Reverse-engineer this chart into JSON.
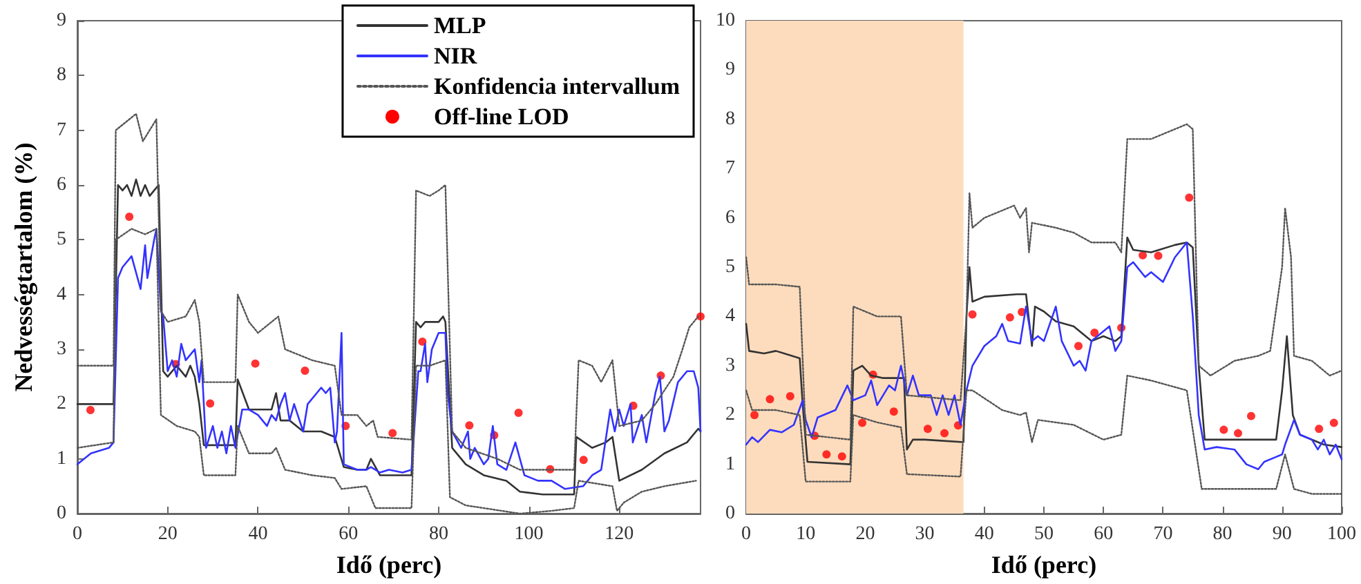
{
  "chart_data": [
    {
      "type": "line",
      "xlabel": "Idő (perc)",
      "ylabel": "Nedvességtartalom (%)",
      "xlim": [
        0,
        138
      ],
      "xticks": [
        0,
        20,
        40,
        60,
        80,
        100,
        120
      ],
      "ylim": [
        0,
        9
      ],
      "yticks": [
        0,
        1,
        2,
        3,
        4,
        5,
        6,
        7,
        8,
        9
      ],
      "grid": false,
      "legend": "top right",
      "series": [
        {
          "name": "MLP",
          "color": "#333333",
          "line_style": "solid",
          "marker": "none",
          "x": [
            0,
            8,
            9,
            10,
            11,
            12,
            13,
            14,
            15,
            16,
            17,
            18,
            19,
            20,
            22,
            24,
            25,
            26,
            27,
            28,
            35,
            35.5,
            38,
            40,
            43,
            44,
            45,
            47,
            50,
            54,
            57,
            59,
            62,
            64,
            65,
            67,
            70,
            74,
            75,
            76,
            77,
            78,
            80,
            81,
            81.5,
            83,
            86,
            90,
            95,
            98,
            103,
            110,
            110.5,
            114,
            117,
            118.5,
            120,
            125,
            130,
            135,
            137.5,
            138
          ],
          "values": [
            2.0,
            2.0,
            6.0,
            5.9,
            6.0,
            5.8,
            6.1,
            5.8,
            6.0,
            5.8,
            5.9,
            6.0,
            2.6,
            2.5,
            2.7,
            2.5,
            2.7,
            2.5,
            2.0,
            1.25,
            1.25,
            2.45,
            1.9,
            1.9,
            1.9,
            2.2,
            1.7,
            1.7,
            1.5,
            1.5,
            1.4,
            0.85,
            0.8,
            0.8,
            1.0,
            0.7,
            0.7,
            0.7,
            3.5,
            3.4,
            3.5,
            3.5,
            3.5,
            3.6,
            3.5,
            1.2,
            0.9,
            0.7,
            0.6,
            0.4,
            0.35,
            0.35,
            1.4,
            1.2,
            1.3,
            1.4,
            0.6,
            0.8,
            1.1,
            1.3,
            1.55,
            1.5
          ]
        },
        {
          "name": "NIR",
          "color": "#3333ff",
          "line_style": "solid",
          "marker": "none",
          "x": [
            0,
            3,
            7,
            8,
            9,
            10,
            12,
            14,
            15,
            15.5,
            17,
            17.5,
            18.5,
            19,
            20,
            21,
            22,
            23,
            24,
            26,
            27,
            27.5,
            28.5,
            30,
            31,
            32,
            33,
            34,
            35,
            36.5,
            38,
            40,
            42,
            43,
            44,
            45,
            46,
            47,
            48,
            50,
            51,
            53,
            54,
            55,
            56,
            57,
            57.5,
            58.5,
            59,
            62,
            64,
            65,
            67,
            69,
            72,
            74,
            75.5,
            76,
            77,
            77.5,
            78.5,
            80,
            81.5,
            82,
            83,
            85,
            86.5,
            87,
            88,
            90,
            91,
            92,
            93,
            95,
            97,
            99,
            102,
            105,
            108,
            112,
            114,
            116,
            118,
            119,
            120,
            121,
            122.5,
            123,
            125,
            126,
            128,
            129,
            130,
            131,
            133,
            135,
            136.5,
            137.5,
            138
          ],
          "values": [
            0.9,
            1.1,
            1.2,
            1.3,
            4.3,
            4.5,
            4.7,
            4.1,
            4.9,
            4.3,
            5.0,
            5.2,
            3.7,
            3.6,
            2.6,
            2.8,
            2.5,
            3.1,
            2.8,
            3.0,
            2.4,
            2.8,
            1.2,
            1.6,
            1.2,
            1.5,
            1.1,
            1.6,
            1.2,
            1.9,
            1.9,
            1.8,
            1.6,
            1.8,
            1.7,
            2.0,
            2.2,
            1.7,
            2.0,
            1.5,
            2.0,
            2.2,
            2.3,
            2.2,
            2.3,
            1.3,
            1.5,
            3.3,
            0.9,
            0.8,
            0.8,
            0.85,
            0.75,
            0.8,
            0.75,
            0.8,
            2.6,
            2.6,
            3.1,
            2.4,
            3.0,
            3.3,
            3.3,
            2.2,
            1.5,
            1.2,
            1.5,
            1.0,
            1.2,
            0.9,
            1.0,
            1.6,
            0.9,
            0.8,
            1.3,
            0.7,
            0.6,
            0.6,
            0.45,
            0.5,
            0.7,
            0.8,
            1.9,
            1.5,
            1.9,
            1.6,
            2.0,
            1.3,
            1.8,
            1.3,
            2.2,
            2.5,
            1.5,
            1.7,
            2.4,
            2.6,
            2.6,
            2.3,
            1.5
          ]
        },
        {
          "name": "Konfidencia intervallum",
          "color": "#555555",
          "line_style": "dotted",
          "marker": "none",
          "x": [
            0,
            8,
            8.5,
            10,
            13,
            14.5,
            17.5,
            18.5,
            20,
            24,
            26,
            27,
            28,
            35,
            35.5,
            38,
            40,
            44.5,
            46,
            49,
            52,
            57,
            58.5,
            62,
            64,
            65.5,
            66.5,
            74,
            75,
            78,
            80,
            81.5,
            83,
            86,
            93,
            98,
            110,
            111,
            114,
            116,
            118.5,
            120,
            125,
            128,
            132,
            134,
            135.5,
            137.5
          ],
          "values": [
            2.7,
            2.7,
            7.0,
            7.1,
            7.3,
            6.8,
            7.2,
            3.7,
            3.5,
            3.6,
            3.9,
            3.5,
            2.4,
            2.4,
            4.0,
            3.5,
            3.3,
            3.6,
            3.0,
            2.9,
            2.8,
            2.7,
            1.8,
            1.8,
            1.6,
            1.7,
            1.4,
            1.35,
            5.9,
            5.8,
            5.9,
            6.0,
            1.5,
            1.2,
            1.0,
            0.8,
            0.8,
            2.8,
            2.7,
            2.4,
            2.8,
            1.6,
            1.7,
            2.0,
            2.5,
            3.0,
            3.4,
            3.6
          ]
        },
        {
          "color": "#555555",
          "line_style": "dotted",
          "marker": "none",
          "x": [
            0,
            8,
            8.5,
            12,
            15,
            17.5,
            18.5,
            22,
            26,
            27,
            28,
            35,
            35.5,
            38,
            43,
            44,
            46,
            52,
            57,
            58.5,
            64,
            65,
            66,
            74,
            75,
            78,
            81.5,
            82.5,
            86,
            98,
            105,
            110,
            111,
            118.5,
            119.5,
            121,
            125,
            130,
            137
          ],
          "values": [
            1.2,
            1.3,
            5.0,
            5.2,
            5.1,
            5.2,
            1.8,
            1.6,
            1.5,
            1.4,
            0.7,
            0.7,
            1.6,
            1.1,
            1.1,
            1.2,
            0.8,
            0.7,
            0.65,
            0.45,
            0.5,
            0.3,
            0.1,
            0.1,
            2.7,
            2.7,
            2.8,
            0.3,
            0.15,
            0.0,
            0.05,
            0.1,
            0.6,
            0.5,
            0.05,
            0.2,
            0.4,
            0.5,
            0.6
          ]
        },
        {
          "name": "Off-line LOD",
          "type": "scatter",
          "color": "#ff0000",
          "marker": "circle",
          "x": [
            2.9,
            11.5,
            21.8,
            29.4,
            39.4,
            50.4,
            59.4,
            69.8,
            76.4,
            86.8,
            92.3,
            97.7,
            104.7,
            112.1,
            123.1,
            129.2,
            138
          ],
          "values": [
            1.89,
            5.42,
            2.73,
            2.01,
            2.74,
            2.61,
            1.6,
            1.47,
            3.14,
            1.61,
            1.43,
            1.84,
            0.81,
            0.98,
            1.97,
            2.52,
            3.6
          ]
        }
      ]
    },
    {
      "type": "line",
      "xlabel": "Idő (perc)",
      "xlim": [
        0,
        100
      ],
      "xticks": [
        0,
        10,
        20,
        30,
        40,
        50,
        60,
        70,
        80,
        90,
        100
      ],
      "ylim": [
        0,
        10
      ],
      "yticks": [
        0,
        1,
        2,
        3,
        4,
        5,
        6,
        7,
        8,
        9,
        10
      ],
      "grid": false,
      "legend": false,
      "bands": [
        {
          "axis": "x",
          "from": 0,
          "to": 36.5,
          "color": "#fddcbd"
        }
      ],
      "series": [
        {
          "color": "#333333",
          "line_style": "solid",
          "marker": "none",
          "x": [
            0,
            0.5,
            3,
            5,
            9,
            9.5,
            10.3,
            17.5,
            18,
            19.5,
            21,
            23,
            26.5,
            27,
            28,
            30,
            36.5,
            37,
            37.5,
            38,
            40,
            45.5,
            47,
            48,
            48.5,
            50,
            52,
            55,
            58,
            60,
            62,
            63,
            64,
            65,
            68,
            72,
            74,
            75,
            76,
            77,
            80,
            89,
            90,
            90.8,
            91.8,
            93,
            97,
            100
          ],
          "values": [
            3.85,
            3.3,
            3.25,
            3.3,
            3.15,
            2.2,
            1.05,
            1.0,
            2.9,
            3.0,
            2.8,
            2.75,
            2.75,
            1.3,
            1.5,
            1.5,
            1.45,
            4.0,
            5.0,
            4.3,
            4.4,
            4.45,
            4.45,
            3.4,
            4.2,
            4.1,
            3.9,
            3.8,
            3.5,
            3.6,
            3.5,
            3.6,
            5.6,
            5.35,
            5.3,
            5.45,
            5.5,
            5.4,
            3.0,
            1.5,
            1.5,
            1.5,
            2.5,
            3.6,
            2.0,
            1.6,
            1.4,
            1.35
          ]
        },
        {
          "color": "#3333ff",
          "line_style": "solid",
          "marker": "none",
          "x": [
            0,
            1,
            2,
            4,
            6,
            8,
            9.5,
            10,
            11,
            12,
            15,
            17,
            18,
            20,
            21,
            22,
            24,
            25,
            26,
            27,
            28,
            29,
            31,
            32,
            33,
            34,
            35,
            36,
            37,
            38,
            40,
            42,
            43,
            44,
            46,
            47,
            48,
            49,
            50,
            52,
            53,
            55,
            56,
            57,
            58,
            61,
            62,
            63,
            64,
            65,
            67,
            68,
            70,
            72,
            74,
            75,
            76,
            77,
            79,
            82,
            84,
            86,
            87,
            89,
            90,
            90.5,
            92,
            93,
            95,
            96,
            97,
            98,
            99,
            100
          ],
          "values": [
            1.4,
            1.55,
            1.45,
            1.7,
            1.65,
            1.8,
            2.3,
            1.9,
            1.55,
            1.95,
            2.1,
            2.6,
            2.3,
            2.4,
            2.7,
            2.2,
            2.6,
            2.5,
            3.0,
            2.4,
            2.8,
            2.4,
            2.4,
            2.0,
            2.4,
            2.0,
            2.4,
            1.8,
            2.5,
            3.0,
            3.4,
            3.6,
            3.85,
            3.5,
            3.45,
            4.2,
            3.5,
            3.6,
            3.5,
            4.2,
            3.5,
            3.0,
            3.1,
            2.9,
            3.5,
            3.8,
            3.3,
            3.5,
            5.0,
            5.1,
            4.8,
            4.9,
            4.7,
            5.2,
            5.5,
            4.0,
            2.0,
            1.3,
            1.35,
            1.3,
            1.0,
            0.9,
            1.05,
            1.15,
            1.2,
            1.4,
            1.9,
            1.6,
            1.5,
            1.3,
            1.5,
            1.2,
            1.4,
            1.1
          ]
        },
        {
          "color": "#555555",
          "line_style": "dotted",
          "marker": "none",
          "x": [
            0,
            0.5,
            5,
            9,
            10,
            17.5,
            18,
            22,
            26,
            27,
            36,
            37,
            37.5,
            38,
            40,
            45,
            46,
            47,
            47.5,
            48,
            52,
            55,
            58,
            62,
            63,
            64,
            68,
            72,
            74,
            75,
            76,
            78,
            82,
            86,
            88,
            90,
            90.5,
            91.5,
            92,
            95,
            98,
            100
          ],
          "values": [
            5.2,
            4.65,
            4.65,
            4.6,
            1.6,
            1.5,
            4.2,
            4.0,
            4.0,
            2.4,
            2.3,
            4.0,
            6.5,
            5.8,
            6.0,
            6.25,
            6.0,
            6.2,
            5.3,
            5.9,
            5.8,
            5.7,
            5.5,
            5.5,
            5.3,
            7.6,
            7.6,
            7.8,
            7.9,
            7.8,
            3.0,
            2.8,
            3.1,
            3.2,
            3.3,
            5.0,
            6.2,
            5.2,
            3.2,
            3.1,
            2.8,
            2.9
          ]
        },
        {
          "color": "#555555",
          "line_style": "dotted",
          "marker": "none",
          "x": [
            0,
            1,
            5,
            9,
            10,
            17.5,
            18,
            22,
            26,
            27,
            36,
            37,
            38,
            43,
            46,
            47,
            48,
            49,
            55,
            60,
            63,
            64,
            68,
            74,
            76.5,
            89,
            90.5,
            92,
            95,
            100
          ],
          "values": [
            2.5,
            2.1,
            2.1,
            2.0,
            0.65,
            0.65,
            2.0,
            1.85,
            1.75,
            0.8,
            0.75,
            2.5,
            2.5,
            2.1,
            2.0,
            2.05,
            1.45,
            1.9,
            1.8,
            1.5,
            1.6,
            2.8,
            2.7,
            2.5,
            0.5,
            0.5,
            1.2,
            0.5,
            0.4,
            0.4
          ]
        },
        {
          "type": "scatter",
          "color": "#ff0000",
          "marker": "circle",
          "x": [
            1.4,
            4.0,
            7.4,
            11.5,
            13.5,
            16.1,
            19.5,
            21.3,
            24.8,
            30.5,
            33.3,
            35.6,
            38.0,
            44.3,
            46.3,
            55.8,
            58.5,
            63.0,
            66.6,
            69.2,
            74.4,
            80.2,
            82.6,
            84.8,
            96.2,
            98.7
          ],
          "values": [
            2.0,
            2.32,
            2.38,
            1.58,
            1.2,
            1.16,
            1.84,
            2.82,
            2.07,
            1.72,
            1.63,
            1.79,
            4.04,
            3.98,
            4.09,
            3.4,
            3.67,
            3.77,
            5.24,
            5.23,
            6.41,
            1.7,
            1.63,
            1.98,
            1.72,
            1.84
          ]
        }
      ]
    }
  ]
}
